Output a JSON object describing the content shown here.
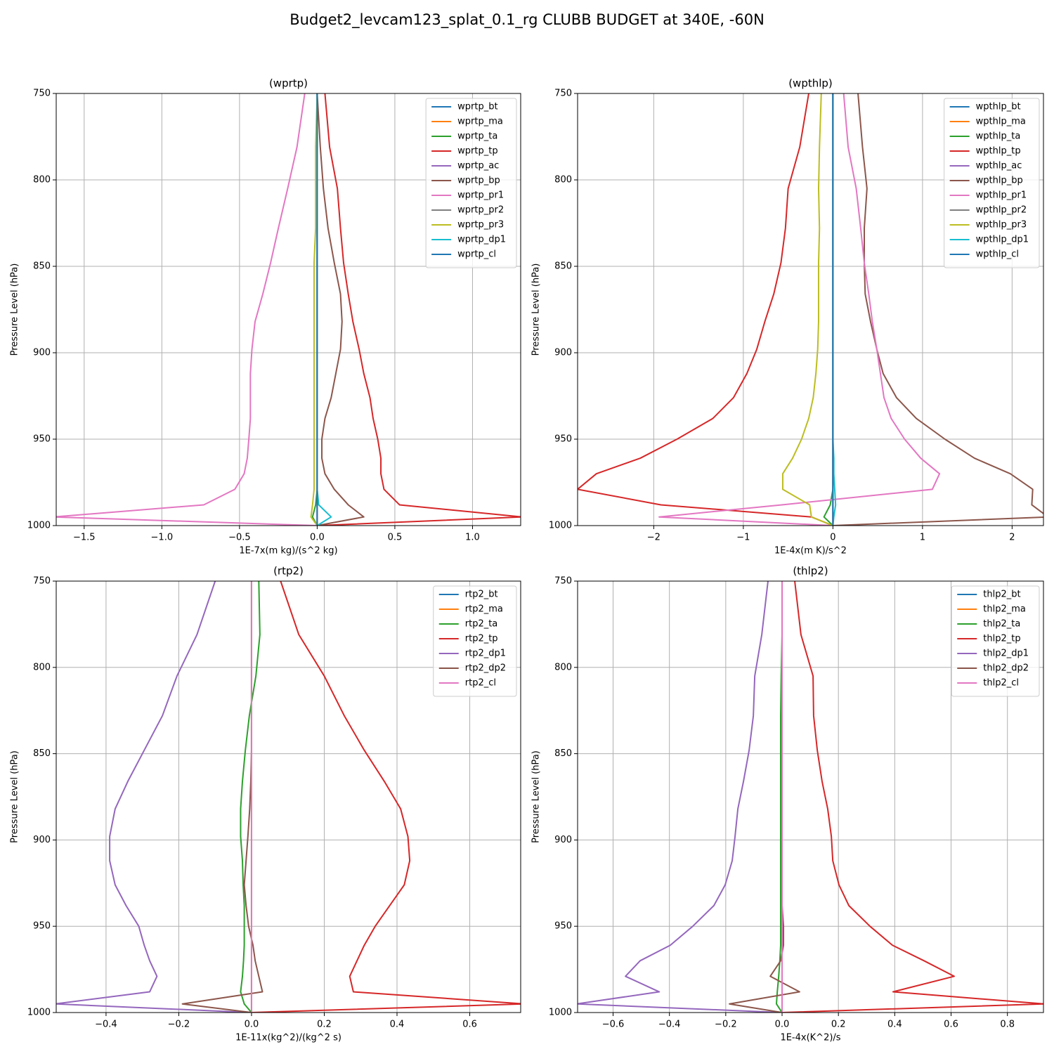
{
  "title": "Budget2_levcam123_splat_0.1_rg CLUBB BUDGET at 340E, -60N",
  "chart_data": [
    {
      "type": "line",
      "title": "(wprtp)",
      "xlabel": "1E-7x(m kg)/(s^2 kg)",
      "ylabel": "Pressure Level (hPa)",
      "grid": true,
      "legend": "upper right",
      "xlim": [
        -1.68,
        1.31
      ],
      "xticks": [
        {
          "value": -1.5,
          "label": "−1.5"
        },
        {
          "value": -1.0,
          "label": "−1.0"
        },
        {
          "value": -0.5,
          "label": "−0.5"
        },
        {
          "value": 0,
          "label": "0.0"
        },
        0.5,
        {
          "value": 1.0,
          "label": "1.0"
        }
      ],
      "ylim": [
        1000,
        750
      ],
      "yticks": [
        750,
        800,
        850,
        900,
        950,
        1000
      ],
      "y": [
        750,
        781,
        805,
        828,
        848,
        866,
        882,
        898,
        912,
        926,
        938,
        950,
        961,
        970,
        979,
        988,
        995,
        1000
      ],
      "series": [
        {
          "name": "wprtp_bt",
          "color": "#1f77b4",
          "values": [
            0,
            0,
            0,
            0,
            0,
            0,
            0,
            0,
            0,
            0,
            0,
            0,
            0,
            0,
            0,
            0,
            0,
            0
          ]
        },
        {
          "name": "wprtp_ma",
          "color": "#ff7f0e",
          "values": [
            0,
            0,
            0,
            0,
            0,
            0,
            0,
            0,
            0,
            0,
            0,
            0,
            0,
            0,
            0,
            0,
            0,
            0
          ]
        },
        {
          "name": "wprtp_ta",
          "color": "#2ca02c",
          "values": [
            0,
            0,
            0,
            0,
            0,
            0,
            0,
            0,
            0,
            0,
            0,
            0,
            0,
            0,
            0,
            -0.01,
            -0.03,
            0
          ]
        },
        {
          "name": "wprtp_tp",
          "color": "#d62728",
          "values": [
            0.05,
            0.08,
            0.13,
            0.15,
            0.17,
            0.2,
            0.23,
            0.27,
            0.3,
            0.34,
            0.36,
            0.39,
            0.41,
            0.41,
            0.43,
            0.53,
            1.32,
            0
          ]
        },
        {
          "name": "wprtp_ac",
          "color": "#9467bd",
          "values": [
            0,
            0,
            0,
            0,
            0,
            0,
            0,
            0,
            0,
            0,
            0,
            0,
            0,
            0,
            0,
            0,
            0,
            0
          ]
        },
        {
          "name": "wprtp_bp",
          "color": "#8c564b",
          "values": [
            0,
            0.02,
            0.04,
            0.07,
            0.11,
            0.15,
            0.16,
            0.15,
            0.12,
            0.09,
            0.05,
            0.03,
            0.03,
            0.05,
            0.11,
            0.2,
            0.3,
            0
          ]
        },
        {
          "name": "wprtp_pr1",
          "color": "#e377c2",
          "values": [
            -0.08,
            -0.13,
            -0.19,
            -0.25,
            -0.3,
            -0.35,
            -0.4,
            -0.42,
            -0.43,
            -0.43,
            -0.43,
            -0.44,
            -0.45,
            -0.47,
            -0.53,
            -0.73,
            -1.7,
            0
          ]
        },
        {
          "name": "wprtp_pr2",
          "color": "#7f7f7f",
          "values": [
            0,
            0,
            0,
            0,
            0,
            0,
            0,
            0,
            0,
            0,
            0,
            0,
            0,
            0,
            0,
            0,
            0,
            0
          ]
        },
        {
          "name": "wprtp_pr3",
          "color": "#bcbd22",
          "values": [
            0,
            -0.01,
            -0.01,
            -0.01,
            -0.02,
            -0.02,
            -0.02,
            -0.02,
            -0.02,
            -0.02,
            -0.02,
            -0.02,
            -0.02,
            -0.02,
            -0.02,
            -0.03,
            -0.04,
            0
          ]
        },
        {
          "name": "wprtp_dp1",
          "color": "#17becf",
          "values": [
            0,
            0,
            0,
            0,
            0,
            0,
            0,
            0,
            0,
            0,
            0,
            0,
            0,
            0,
            0,
            0.01,
            0.09,
            0
          ]
        },
        {
          "name": "wprtp_cl",
          "color": "#1f77b4",
          "values": [
            0,
            0,
            0,
            0,
            0,
            0,
            0,
            0,
            0,
            0,
            0,
            0,
            0,
            0,
            0,
            0,
            0,
            0
          ]
        }
      ]
    },
    {
      "type": "line",
      "title": "(wpthlp)",
      "xlabel": "1E-4x(m K)/s^2",
      "ylabel": "Pressure Level (hPa)",
      "grid": true,
      "legend": "upper right",
      "xlim": [
        -2.85,
        2.35
      ],
      "xticks": [
        {
          "value": -2,
          "label": "−2"
        },
        {
          "value": -1,
          "label": "−1"
        },
        0,
        1,
        2
      ],
      "ylim": [
        1000,
        750
      ],
      "yticks": [
        750,
        800,
        850,
        900,
        950,
        1000
      ],
      "y": [
        750,
        781,
        805,
        828,
        848,
        866,
        882,
        898,
        912,
        926,
        938,
        950,
        961,
        970,
        979,
        988,
        995,
        1000
      ],
      "series": [
        {
          "name": "wpthlp_bt",
          "color": "#1f77b4",
          "values": [
            0,
            0,
            0,
            0,
            0,
            0,
            0,
            0,
            0,
            0,
            0,
            0,
            0,
            0,
            0,
            0,
            0,
            0
          ]
        },
        {
          "name": "wpthlp_ma",
          "color": "#ff7f0e",
          "values": [
            0,
            0,
            0,
            0,
            0,
            0,
            0,
            0,
            0,
            0,
            0,
            0,
            0,
            0,
            0,
            0,
            0,
            0
          ]
        },
        {
          "name": "wpthlp_ta",
          "color": "#2ca02c",
          "values": [
            0,
            0,
            0,
            0,
            0,
            0,
            0,
            0,
            0,
            0,
            0,
            0,
            0,
            0,
            0,
            -0.03,
            -0.1,
            0
          ]
        },
        {
          "name": "wpthlp_tp",
          "color": "#d62728",
          "values": [
            -0.27,
            -0.37,
            -0.5,
            -0.53,
            -0.58,
            -0.66,
            -0.76,
            -0.85,
            -0.96,
            -1.11,
            -1.34,
            -1.74,
            -2.15,
            -2.64,
            -2.85,
            -1.92,
            -0.24,
            0
          ]
        },
        {
          "name": "wpthlp_ac",
          "color": "#9467bd",
          "values": [
            0,
            0,
            0,
            0,
            0,
            0,
            0,
            0,
            0,
            0,
            0,
            0,
            0,
            0,
            0,
            0,
            0,
            0
          ]
        },
        {
          "name": "wpthlp_bp",
          "color": "#8c564b",
          "values": [
            0.28,
            0.33,
            0.38,
            0.35,
            0.35,
            0.36,
            0.42,
            0.49,
            0.56,
            0.71,
            0.93,
            1.25,
            1.58,
            1.98,
            2.23,
            2.22,
            2.4,
            0
          ]
        },
        {
          "name": "wpthlp_pr1",
          "color": "#e377c2",
          "values": [
            0.12,
            0.17,
            0.26,
            0.31,
            0.35,
            0.4,
            0.44,
            0.49,
            0.53,
            0.57,
            0.65,
            0.8,
            0.98,
            1.19,
            1.11,
            -0.57,
            -1.94,
            0
          ]
        },
        {
          "name": "wpthlp_pr2",
          "color": "#7f7f7f",
          "values": [
            0,
            0,
            0,
            0,
            0,
            0,
            0,
            0,
            0,
            0,
            0,
            0,
            0,
            0,
            0,
            0,
            0,
            0
          ]
        },
        {
          "name": "wpthlp_pr3",
          "color": "#bcbd22",
          "values": [
            -0.13,
            -0.15,
            -0.16,
            -0.15,
            -0.16,
            -0.16,
            -0.16,
            -0.17,
            -0.19,
            -0.22,
            -0.27,
            -0.35,
            -0.45,
            -0.56,
            -0.56,
            -0.26,
            -0.24,
            0
          ]
        },
        {
          "name": "wpthlp_dp1",
          "color": "#17becf",
          "values": [
            0,
            0,
            0,
            0,
            0,
            0,
            0,
            0,
            0,
            0,
            0,
            0,
            0.01,
            0.01,
            0.02,
            0.03,
            0.01,
            0
          ]
        },
        {
          "name": "wpthlp_cl",
          "color": "#1f77b4",
          "values": [
            0,
            0,
            0,
            0,
            0,
            0,
            0,
            0,
            0,
            0,
            0,
            0,
            0,
            0,
            0,
            0,
            0,
            0
          ]
        }
      ]
    },
    {
      "type": "line",
      "title": "(rtp2)",
      "xlabel": "1E-11x(kg^2)/(kg^2 s)",
      "ylabel": "Pressure Level (hPa)",
      "grid": true,
      "legend": "upper right",
      "xlim": [
        -0.537,
        0.74
      ],
      "xticks": [
        {
          "value": -0.4,
          "label": "−0.4"
        },
        {
          "value": -0.2,
          "label": "−0.2"
        },
        {
          "value": 0,
          "label": "0.0"
        },
        0.2,
        0.4,
        0.6
      ],
      "ylim": [
        1000,
        750
      ],
      "yticks": [
        750,
        800,
        850,
        900,
        950,
        1000
      ],
      "y": [
        750,
        781,
        805,
        828,
        848,
        866,
        882,
        898,
        912,
        926,
        938,
        950,
        961,
        970,
        979,
        988,
        995,
        1000
      ],
      "series": [
        {
          "name": "rtp2_bt",
          "color": "#1f77b4",
          "values": [
            0,
            0,
            0,
            0,
            0,
            0,
            0,
            0,
            0,
            0,
            0,
            0,
            0,
            0,
            0,
            0,
            0,
            0
          ]
        },
        {
          "name": "rtp2_ma",
          "color": "#ff7f0e",
          "values": [
            0,
            0,
            0,
            0,
            0,
            0,
            0,
            0,
            0,
            0,
            0,
            0,
            0,
            0,
            0,
            0,
            0,
            0
          ]
        },
        {
          "name": "rtp2_ta",
          "color": "#2ca02c",
          "values": [
            0.02,
            0.023,
            0.012,
            -0.006,
            -0.017,
            -0.025,
            -0.03,
            -0.03,
            -0.025,
            -0.023,
            -0.02,
            -0.02,
            -0.02,
            -0.022,
            -0.025,
            -0.03,
            -0.02,
            0
          ]
        },
        {
          "name": "rtp2_tp",
          "color": "#d62728",
          "values": [
            0.08,
            0.13,
            0.2,
            0.255,
            0.31,
            0.365,
            0.41,
            0.43,
            0.435,
            0.42,
            0.38,
            0.34,
            0.31,
            0.29,
            0.27,
            0.28,
            0.75,
            0
          ]
        },
        {
          "name": "rtp2_dp1",
          "color": "#9467bd",
          "values": [
            -0.1,
            -0.15,
            -0.205,
            -0.245,
            -0.295,
            -0.34,
            -0.375,
            -0.39,
            -0.39,
            -0.375,
            -0.345,
            -0.31,
            -0.295,
            -0.28,
            -0.26,
            -0.28,
            -0.54,
            0
          ]
        },
        {
          "name": "rtp2_dp2",
          "color": "#8c564b",
          "values": [
            0,
            0,
            0,
            0,
            0,
            -0.002,
            -0.005,
            -0.01,
            -0.015,
            -0.02,
            -0.015,
            -0.008,
            0.004,
            0.01,
            0.02,
            0.03,
            -0.19,
            0
          ]
        },
        {
          "name": "rtp2_cl",
          "color": "#e377c2",
          "values": [
            0,
            0,
            0,
            0,
            0,
            0,
            0,
            0,
            0,
            0,
            0,
            0,
            0,
            0,
            0,
            0,
            0,
            0
          ]
        }
      ]
    },
    {
      "type": "line",
      "title": "(thlp2)",
      "xlabel": "1E-4x(K^2)/s",
      "ylabel": "Pressure Level (hPa)",
      "grid": true,
      "legend": "upper right",
      "xlim": [
        -0.726,
        0.928
      ],
      "xticks": [
        {
          "value": -0.6,
          "label": "−0.6"
        },
        {
          "value": -0.4,
          "label": "−0.4"
        },
        {
          "value": -0.2,
          "label": "−0.2"
        },
        {
          "value": 0,
          "label": "0.0"
        },
        0.2,
        0.4,
        0.6,
        0.8
      ],
      "ylim": [
        1000,
        750
      ],
      "yticks": [
        750,
        800,
        850,
        900,
        950,
        1000
      ],
      "y": [
        750,
        781,
        805,
        828,
        848,
        866,
        882,
        898,
        912,
        926,
        938,
        950,
        961,
        970,
        979,
        988,
        995,
        1000
      ],
      "series": [
        {
          "name": "thlp2_bt",
          "color": "#1f77b4",
          "values": [
            0,
            0,
            0,
            0,
            0,
            0,
            0,
            0,
            0,
            0,
            0,
            0,
            0,
            0,
            0,
            0,
            0,
            0
          ]
        },
        {
          "name": "thlp2_ma",
          "color": "#ff7f0e",
          "values": [
            0,
            0,
            0,
            0,
            0,
            0,
            0,
            0,
            0,
            0,
            0,
            0,
            0,
            0,
            0,
            0,
            0,
            0
          ]
        },
        {
          "name": "thlp2_ta",
          "color": "#2ca02c",
          "values": [
            0,
            0,
            -0.003,
            -0.005,
            -0.005,
            -0.005,
            -0.005,
            -0.005,
            -0.005,
            -0.005,
            -0.005,
            -0.005,
            -0.005,
            -0.008,
            -0.012,
            -0.017,
            -0.02,
            0
          ]
        },
        {
          "name": "thlp2_tp",
          "color": "#d62728",
          "values": [
            0.045,
            0.067,
            0.11,
            0.112,
            0.125,
            0.142,
            0.162,
            0.175,
            0.18,
            0.202,
            0.237,
            0.312,
            0.392,
            0.504,
            0.611,
            0.394,
            0.93,
            0
          ]
        },
        {
          "name": "thlp2_dp1",
          "color": "#9467bd",
          "values": [
            -0.05,
            -0.072,
            -0.097,
            -0.102,
            -0.117,
            -0.137,
            -0.157,
            -0.167,
            -0.177,
            -0.202,
            -0.242,
            -0.317,
            -0.397,
            -0.504,
            -0.556,
            -0.436,
            -0.73,
            0
          ]
        },
        {
          "name": "thlp2_dp2",
          "color": "#8c564b",
          "values": [
            0,
            0,
            0,
            0,
            0,
            0,
            0,
            0,
            0,
            0,
            0,
            0.005,
            0.005,
            -0.005,
            -0.042,
            0.062,
            -0.187,
            0
          ]
        },
        {
          "name": "thlp2_cl",
          "color": "#e377c2",
          "values": [
            0,
            0,
            0,
            0,
            0,
            0,
            0,
            0,
            0,
            0,
            0,
            0,
            0,
            0,
            0,
            0,
            0,
            0
          ]
        }
      ]
    }
  ]
}
